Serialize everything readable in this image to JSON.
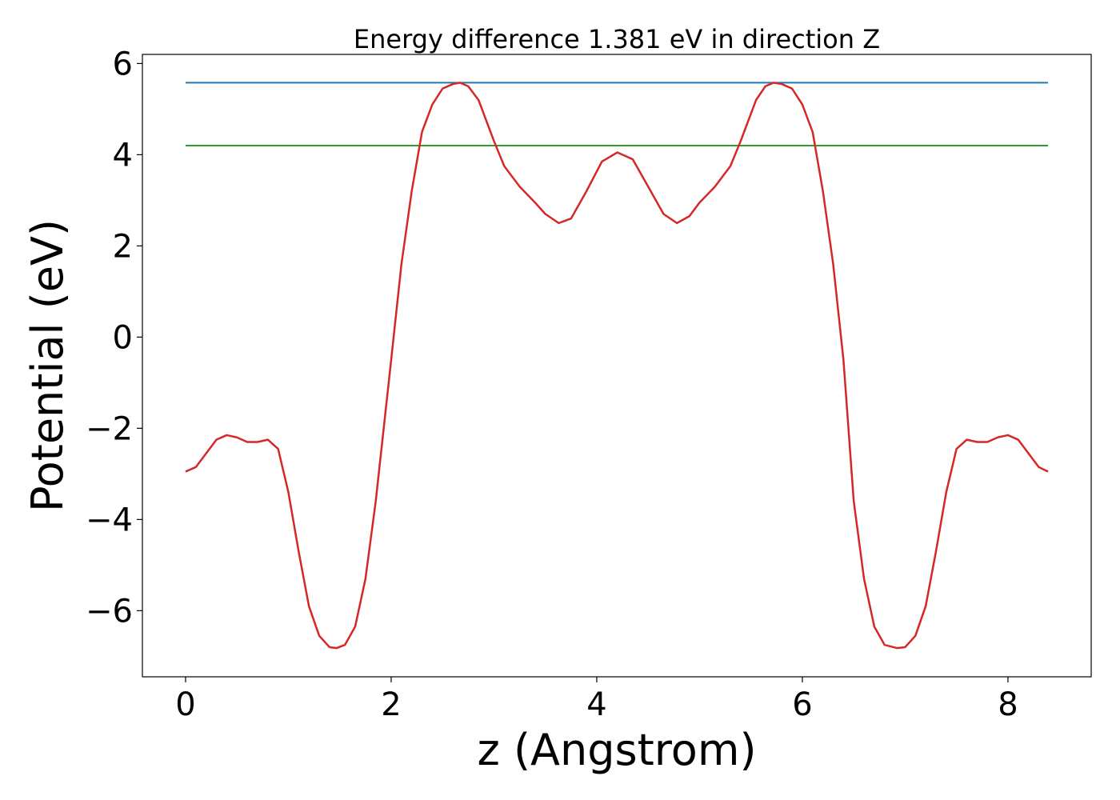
{
  "chart_data": {
    "type": "line",
    "title": "Energy difference 1.381 eV in direction Z",
    "xlabel": "z (Angstrom)",
    "ylabel": "Potential (eV)",
    "xlim": [
      -0.42,
      8.81
    ],
    "ylim": [
      -7.45,
      6.2
    ],
    "xticks": [
      0,
      2,
      4,
      6,
      8
    ],
    "yticks": [
      -6,
      -4,
      -2,
      0,
      2,
      4,
      6
    ],
    "xtick_labels": [
      "0",
      "2",
      "4",
      "6",
      "8"
    ],
    "ytick_labels": [
      "−6",
      "−4",
      "−2",
      "0",
      "2",
      "4",
      "6"
    ],
    "grid": false,
    "series": [
      {
        "color": "#1f77b4",
        "x": [
          0,
          8.39
        ],
        "y": [
          5.58,
          5.58
        ]
      },
      {
        "color": "#2ca02c",
        "x": [
          0,
          8.39
        ],
        "y": [
          4.2,
          4.2
        ]
      },
      {
        "color": "#d62728",
        "x": [
          0,
          0.1,
          0.2,
          0.3,
          0.4,
          0.5,
          0.6,
          0.7,
          0.8,
          0.9,
          1.0,
          1.1,
          1.2,
          1.3,
          1.4,
          1.47,
          1.55,
          1.65,
          1.75,
          1.85,
          2.0,
          2.1,
          2.2,
          2.3,
          2.4,
          2.5,
          2.6,
          2.67,
          2.75,
          2.85,
          3.0,
          3.1,
          3.25,
          3.4,
          3.5,
          3.63,
          3.75,
          3.9,
          4.05,
          4.2,
          4.35,
          4.5,
          4.65,
          4.78,
          4.9,
          5.0,
          5.15,
          5.3,
          5.4,
          5.55,
          5.64,
          5.72,
          5.8,
          5.9,
          6.0,
          6.1,
          6.2,
          6.3,
          6.4,
          6.5,
          6.6,
          6.7,
          6.8,
          6.92,
          7.0,
          7.1,
          7.2,
          7.3,
          7.4,
          7.5,
          7.6,
          7.7,
          7.8,
          7.9,
          8.0,
          8.1,
          8.2,
          8.3,
          8.39
        ],
        "y": [
          -2.95,
          -2.85,
          -2.55,
          -2.25,
          -2.15,
          -2.2,
          -2.3,
          -2.3,
          -2.25,
          -2.45,
          -3.4,
          -4.7,
          -5.9,
          -6.55,
          -6.8,
          -6.82,
          -6.75,
          -6.35,
          -5.3,
          -3.6,
          -0.5,
          1.6,
          3.2,
          4.5,
          5.1,
          5.45,
          5.55,
          5.58,
          5.5,
          5.2,
          4.3,
          3.75,
          3.3,
          2.95,
          2.7,
          2.5,
          2.6,
          3.2,
          3.85,
          4.05,
          3.9,
          3.3,
          2.7,
          2.5,
          2.65,
          2.95,
          3.3,
          3.75,
          4.3,
          5.2,
          5.5,
          5.58,
          5.55,
          5.45,
          5.1,
          4.5,
          3.2,
          1.6,
          -0.5,
          -3.6,
          -5.3,
          -6.35,
          -6.75,
          -6.82,
          -6.8,
          -6.55,
          -5.9,
          -4.7,
          -3.4,
          -2.45,
          -2.25,
          -2.3,
          -2.3,
          -2.2,
          -2.15,
          -2.25,
          -2.55,
          -2.85,
          -2.95
        ]
      }
    ]
  }
}
